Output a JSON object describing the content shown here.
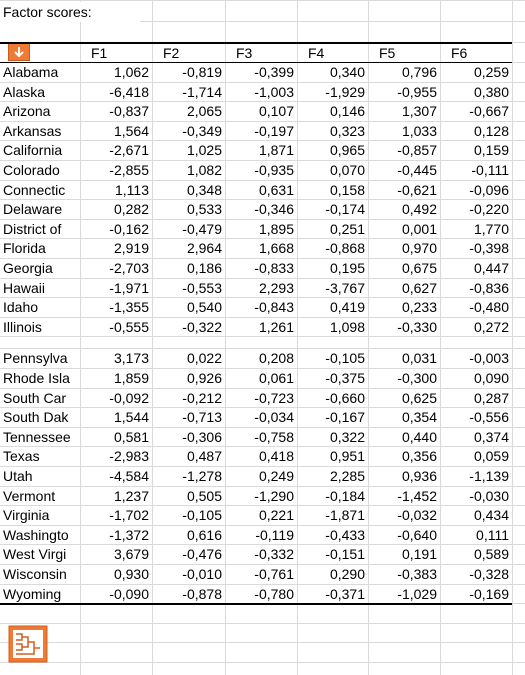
{
  "title": "Factor scores:",
  "table": {
    "columns": [
      "F1",
      "F2",
      "F3",
      "F4",
      "F5",
      "F6"
    ],
    "blocks": [
      [
        [
          "Alabama",
          "1,062",
          "-0,819",
          "-0,399",
          "0,340",
          "0,796",
          "0,259"
        ],
        [
          "Alaska",
          "-6,418",
          "-1,714",
          "-1,003",
          "-1,929",
          "-0,955",
          "0,380"
        ],
        [
          "Arizona",
          "-0,837",
          "2,065",
          "0,107",
          "0,146",
          "1,307",
          "-0,667"
        ],
        [
          "Arkansas",
          "1,564",
          "-0,349",
          "-0,197",
          "0,323",
          "1,033",
          "0,128"
        ],
        [
          "California",
          "-2,671",
          "1,025",
          "1,871",
          "0,965",
          "-0,857",
          "0,159"
        ],
        [
          "Colorado",
          "-2,855",
          "1,082",
          "-0,935",
          "0,070",
          "-0,445",
          "-0,111"
        ],
        [
          "Connectic",
          "1,113",
          "0,348",
          "0,631",
          "0,158",
          "-0,621",
          "-0,096"
        ],
        [
          "Delaware",
          "0,282",
          "0,533",
          "-0,346",
          "-0,174",
          "0,492",
          "-0,220"
        ],
        [
          "District of",
          "-0,162",
          "-0,479",
          "1,895",
          "0,251",
          "0,001",
          "1,770"
        ],
        [
          "Florida",
          "2,919",
          "2,964",
          "1,668",
          "-0,868",
          "0,970",
          "-0,398"
        ],
        [
          "Georgia",
          "-2,703",
          "0,186",
          "-0,833",
          "0,195",
          "0,675",
          "0,447"
        ],
        [
          "Hawaii",
          "-1,971",
          "-0,553",
          "2,293",
          "-3,767",
          "0,627",
          "-0,836"
        ],
        [
          "Idaho",
          "-1,355",
          "0,540",
          "-0,843",
          "0,419",
          "0,233",
          "-0,480"
        ],
        [
          "Illinois",
          "-0,555",
          "-0,322",
          "1,261",
          "1,098",
          "-0,330",
          "0,272"
        ]
      ],
      [
        [
          "Pennsylva",
          "3,173",
          "0,022",
          "0,208",
          "-0,105",
          "0,031",
          "-0,003"
        ],
        [
          "Rhode Isla",
          "1,859",
          "0,926",
          "0,061",
          "-0,375",
          "-0,300",
          "0,090"
        ],
        [
          "South Car",
          "-0,092",
          "-0,212",
          "-0,723",
          "-0,660",
          "0,625",
          "0,287"
        ],
        [
          "South Dak",
          "1,544",
          "-0,713",
          "-0,034",
          "-0,167",
          "0,354",
          "-0,556"
        ],
        [
          "Tennessee",
          "0,581",
          "-0,306",
          "-0,758",
          "0,322",
          "0,440",
          "0,374"
        ],
        [
          "Texas",
          "-2,983",
          "0,487",
          "0,418",
          "0,951",
          "0,356",
          "0,059"
        ],
        [
          "Utah",
          "-4,584",
          "-1,278",
          "0,249",
          "2,285",
          "0,936",
          "-1,139"
        ],
        [
          "Vermont",
          "1,237",
          "0,505",
          "-1,290",
          "-0,184",
          "-1,452",
          "-0,030"
        ],
        [
          "Virginia",
          "-1,702",
          "-0,105",
          "0,221",
          "-1,871",
          "-0,032",
          "0,434"
        ],
        [
          "Washingto",
          "-1,372",
          "0,616",
          "-0,119",
          "-0,433",
          "-0,640",
          "0,111"
        ],
        [
          "West Virgi",
          "3,679",
          "-0,476",
          "-0,332",
          "-0,151",
          "0,191",
          "0,589"
        ],
        [
          "Wisconsin",
          "0,930",
          "-0,010",
          "-0,761",
          "0,290",
          "-0,383",
          "-0,328"
        ],
        [
          "Wyoming",
          "-0,090",
          "-0,878",
          "-0,780",
          "-0,371",
          "-1,029",
          "-0,169"
        ]
      ]
    ]
  }
}
